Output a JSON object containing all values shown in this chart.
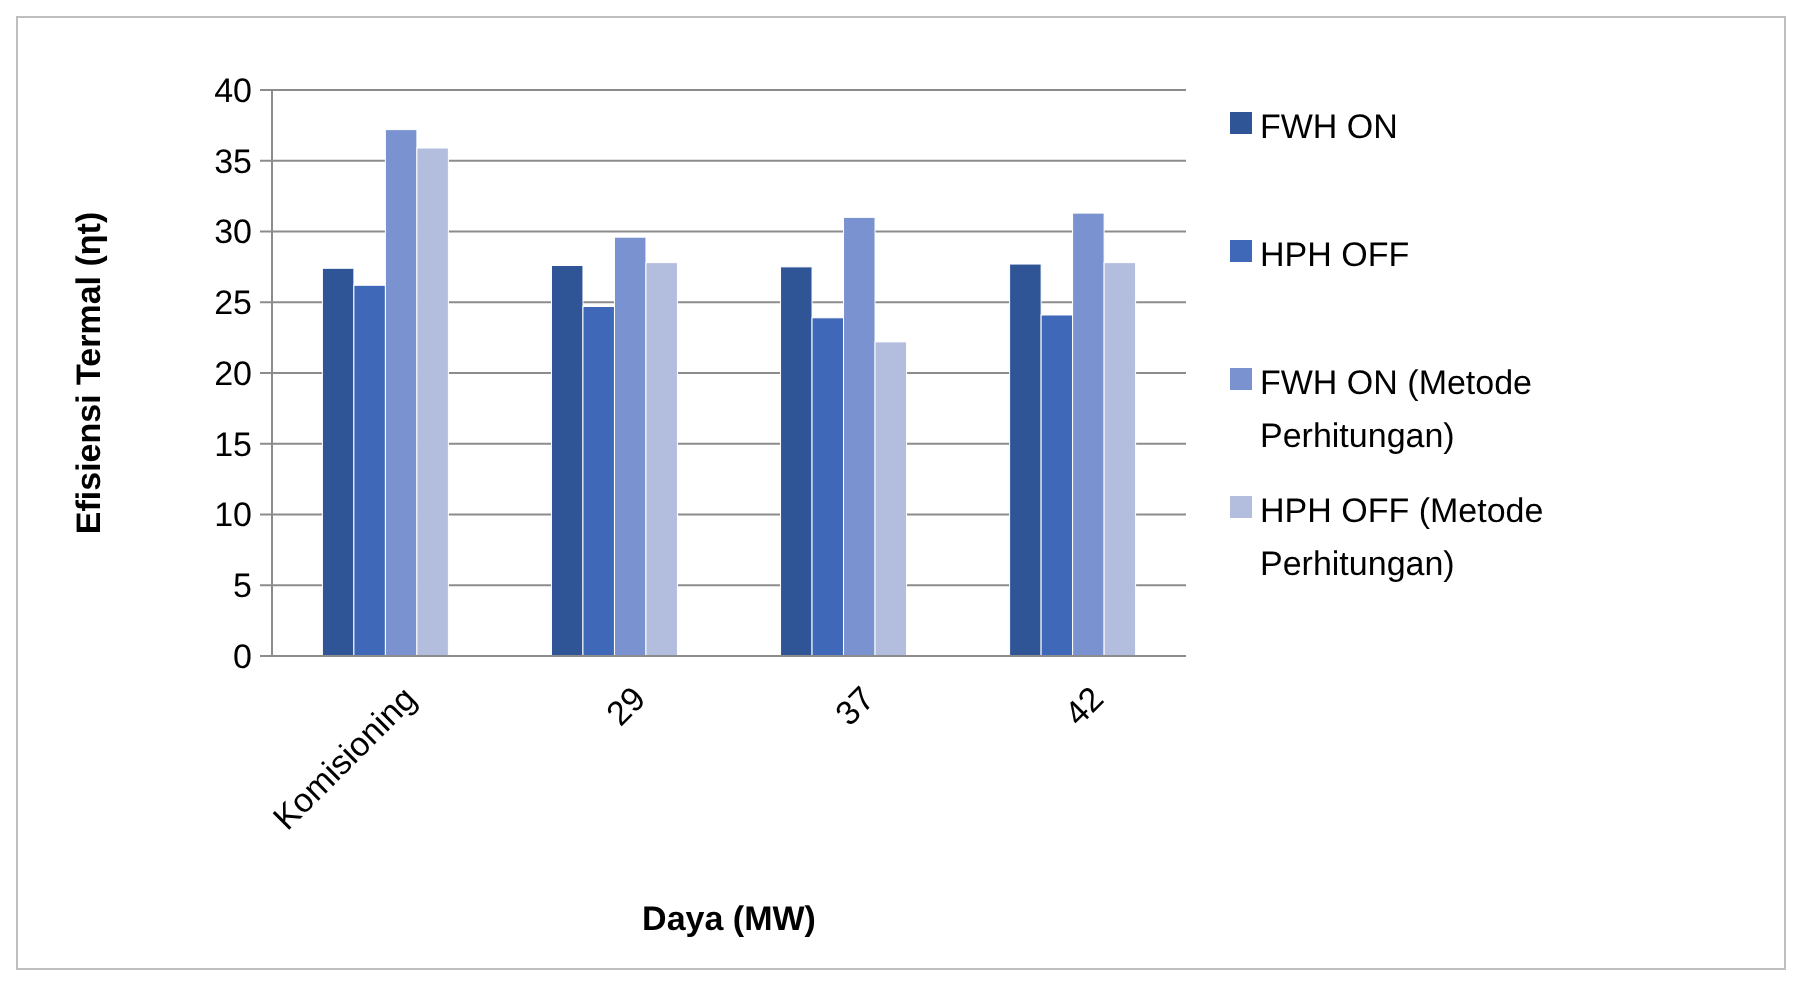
{
  "chart_data": {
    "type": "bar",
    "xlabel": "Daya (MW)",
    "ylabel": "Efisiensi Termal (ηt)",
    "categories": [
      "Komisioning",
      "29",
      "37",
      "42"
    ],
    "series": [
      {
        "name": "FWH ON",
        "color": "#2f5597",
        "values": [
          27.4,
          27.6,
          27.5,
          27.7
        ]
      },
      {
        "name": "HPH OFF",
        "color": "#3f68b8",
        "values": [
          26.2,
          24.7,
          23.9,
          24.1
        ]
      },
      {
        "name": "FWH ON (Metode Perhitungan)",
        "color": "#7a92cf",
        "values": [
          37.2,
          29.6,
          31.0,
          31.3
        ]
      },
      {
        "name": "HPH OFF (Metode Perhitungan)",
        "color": "#b3bedf",
        "values": [
          35.9,
          27.8,
          22.2,
          27.8
        ]
      }
    ],
    "ylim": [
      0,
      40
    ],
    "yticks": [
      0,
      5,
      10,
      15,
      20,
      25,
      30,
      35,
      40
    ],
    "grid": "y",
    "legend": "right"
  }
}
